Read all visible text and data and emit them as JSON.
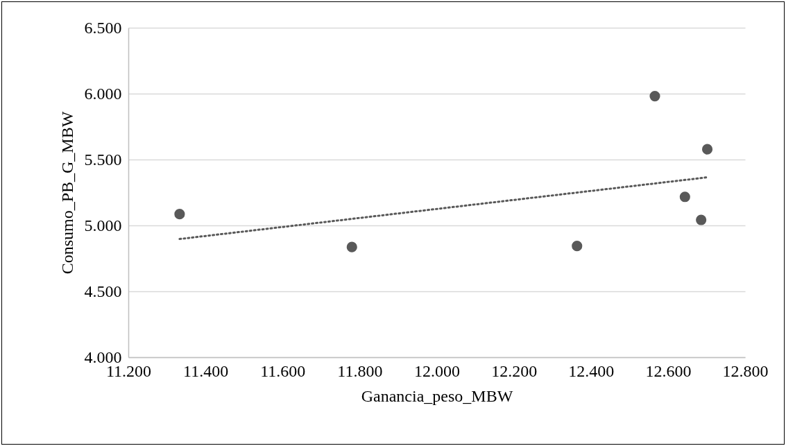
{
  "chart_data": {
    "type": "scatter",
    "xlabel": "Ganancia_peso_MBW",
    "ylabel": "Consumo_PB_G_MBW",
    "x": [
      11.333,
      11.78,
      12.364,
      12.566,
      12.644,
      12.686,
      12.702
    ],
    "series": [
      {
        "color": "#595959",
        "marker": "circle",
        "values": [
          5.086,
          4.836,
          4.844,
          5.981,
          5.217,
          5.042,
          5.578
        ]
      },
      {
        "type": "line",
        "color": "#595959",
        "line_style": "dotted",
        "x": [
          11.333,
          12.702
        ],
        "values": [
          4.897,
          5.365
        ]
      }
    ],
    "xlim": [
      11.2,
      12.8
    ],
    "xticks": [
      {
        "value": 11.2,
        "label": "11.200"
      },
      {
        "value": 11.4,
        "label": "11.400"
      },
      {
        "value": 11.6,
        "label": "11.600"
      },
      {
        "value": 11.8,
        "label": "11.800"
      },
      {
        "value": 12.0,
        "label": "12.000"
      },
      {
        "value": 12.2,
        "label": "12.200"
      },
      {
        "value": 12.4,
        "label": "12.400"
      },
      {
        "value": 12.6,
        "label": "12.600"
      },
      {
        "value": 12.8,
        "label": "12.800"
      }
    ],
    "ylim": [
      4.0,
      6.5
    ],
    "yticks": [
      {
        "value": 4.0,
        "label": "4.000"
      },
      {
        "value": 4.5,
        "label": "4.500"
      },
      {
        "value": 5.0,
        "label": "5.000"
      },
      {
        "value": 5.5,
        "label": "5.500"
      },
      {
        "value": 6.0,
        "label": "6.000"
      },
      {
        "value": 6.5,
        "label": "6.500"
      }
    ],
    "grid": "y"
  }
}
